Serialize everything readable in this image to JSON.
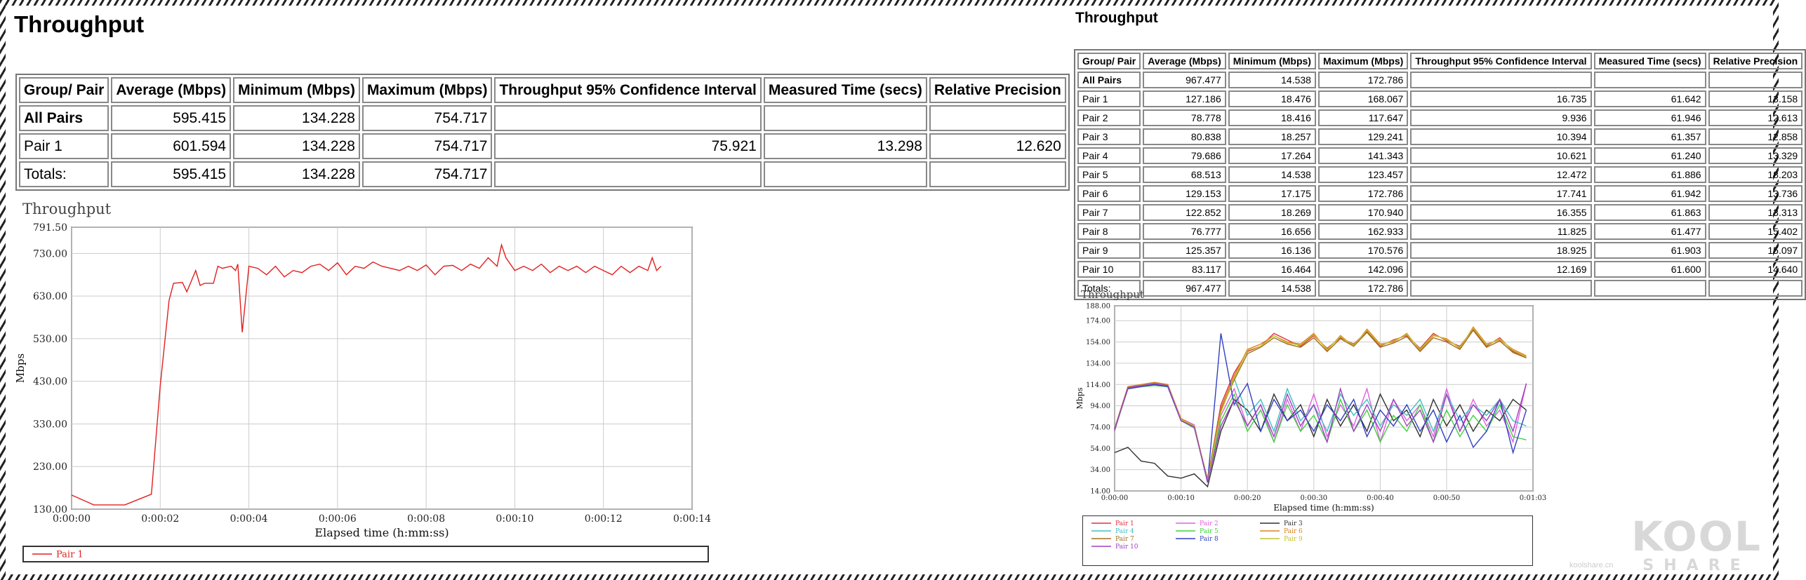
{
  "left": {
    "title": "Throughput",
    "table": {
      "headers": [
        "Group/ Pair",
        "Average (Mbps)",
        "Minimum (Mbps)",
        "Maximum (Mbps)",
        "Throughput 95% Confidence Interval",
        "Measured Time (secs)",
        "Relative Precision"
      ],
      "rows": [
        [
          "All Pairs",
          "595.415",
          "134.228",
          "754.717",
          "",
          "",
          ""
        ],
        [
          "Pair 1",
          "601.594",
          "134.228",
          "754.717",
          "75.921",
          "13.298",
          "12.620"
        ],
        [
          "Totals:",
          "595.415",
          "134.228",
          "754.717",
          "",
          "",
          ""
        ]
      ]
    },
    "chart_title": "Throughput",
    "legend": [
      "Pair 1"
    ]
  },
  "right": {
    "title": "Throughput",
    "table": {
      "headers": [
        "Group/ Pair",
        "Average (Mbps)",
        "Minimum (Mbps)",
        "Maximum (Mbps)",
        "Throughput 95% Confidence Interval",
        "Measured Time (secs)",
        "Relative Precision"
      ],
      "rows": [
        [
          "All Pairs",
          "967.477",
          "14.538",
          "172.786",
          "",
          "",
          ""
        ],
        [
          "Pair 1",
          "127.186",
          "18.476",
          "168.067",
          "16.735",
          "61.642",
          "13.158"
        ],
        [
          "Pair 2",
          "78.778",
          "18.416",
          "117.647",
          "9.936",
          "61.946",
          "12.613"
        ],
        [
          "Pair 3",
          "80.838",
          "18.257",
          "129.241",
          "10.394",
          "61.357",
          "12.858"
        ],
        [
          "Pair 4",
          "79.686",
          "17.264",
          "141.343",
          "10.621",
          "61.240",
          "13.329"
        ],
        [
          "Pair 5",
          "68.513",
          "14.538",
          "123.457",
          "12.472",
          "61.886",
          "18.203"
        ],
        [
          "Pair 6",
          "129.153",
          "17.175",
          "172.786",
          "17.741",
          "61.942",
          "13.736"
        ],
        [
          "Pair 7",
          "122.852",
          "18.269",
          "170.940",
          "16.355",
          "61.863",
          "13.313"
        ],
        [
          "Pair 8",
          "76.777",
          "16.656",
          "162.933",
          "11.825",
          "61.477",
          "15.402"
        ],
        [
          "Pair 9",
          "125.357",
          "16.136",
          "170.576",
          "18.925",
          "61.903",
          "15.097"
        ],
        [
          "Pair 10",
          "83.117",
          "16.464",
          "142.096",
          "12.169",
          "61.600",
          "14.640"
        ],
        [
          "Totals:",
          "967.477",
          "14.538",
          "172.786",
          "",
          "",
          ""
        ]
      ]
    },
    "chart_title": "Throughput",
    "legend": [
      "Pair 1",
      "Pair 2",
      "Pair 3",
      "Pair 4",
      "Pair 5",
      "Pair 6",
      "Pair 7",
      "Pair 8",
      "Pair 9",
      "Pair 10"
    ]
  },
  "watermark": {
    "line1": "KOOL",
    "line2": "SHARE",
    "small": "koolshare.cn"
  },
  "chart_data": [
    {
      "type": "line",
      "title": "Throughput",
      "xlabel": "Elapsed time (h:mm:ss)",
      "ylabel": "Mbps",
      "xlim": [
        0,
        14
      ],
      "ylim": [
        130,
        791.5
      ],
      "x_ticks": [
        "0:00:00",
        "0:00:02",
        "0:00:04",
        "0:00:06",
        "0:00:08",
        "0:00:10",
        "0:00:12",
        "0:00:14"
      ],
      "y_ticks": [
        "130.00",
        "230.00",
        "330.00",
        "430.00",
        "530.00",
        "630.00",
        "730.00",
        "791.50"
      ],
      "grid": true,
      "legend": "bottom",
      "series": [
        {
          "name": "Pair 1",
          "color": "#e02020",
          "x": [
            0,
            0.5,
            1.2,
            1.8,
            2.0,
            2.2,
            2.3,
            2.5,
            2.6,
            2.8,
            2.9,
            3.0,
            3.2,
            3.3,
            3.4,
            3.6,
            3.7,
            3.75,
            3.85,
            4.0,
            4.2,
            4.4,
            4.6,
            4.8,
            5.0,
            5.2,
            5.4,
            5.6,
            5.8,
            6.0,
            6.2,
            6.4,
            6.6,
            6.8,
            7.0,
            7.2,
            7.4,
            7.6,
            7.8,
            8.0,
            8.2,
            8.4,
            8.6,
            8.8,
            9.0,
            9.2,
            9.4,
            9.6,
            9.7,
            9.8,
            10.0,
            10.2,
            10.4,
            10.6,
            10.8,
            11.0,
            11.2,
            11.4,
            11.6,
            11.8,
            12.0,
            12.2,
            12.4,
            12.6,
            12.8,
            13.0,
            13.1,
            13.2,
            13.3
          ],
          "y": [
            163,
            140,
            140,
            165,
            420,
            620,
            660,
            662,
            640,
            690,
            655,
            660,
            660,
            700,
            695,
            700,
            690,
            705,
            545,
            700,
            695,
            680,
            700,
            675,
            690,
            685,
            700,
            705,
            690,
            708,
            680,
            700,
            695,
            710,
            700,
            695,
            690,
            700,
            690,
            703,
            680,
            700,
            702,
            690,
            705,
            695,
            720,
            700,
            750,
            720,
            690,
            700,
            690,
            705,
            685,
            700,
            690,
            700,
            685,
            700,
            690,
            680,
            700,
            685,
            700,
            690,
            720,
            690,
            700
          ]
        }
      ]
    },
    {
      "type": "line",
      "title": "Throughput",
      "xlabel": "Elapsed time (h:mm:ss)",
      "ylabel": "Mbps",
      "xlim": [
        0,
        63
      ],
      "ylim": [
        14,
        188
      ],
      "x_ticks": [
        "0:00:00",
        "0:00:10",
        "0:00:20",
        "0:00:30",
        "0:00:40",
        "0:00:50",
        "0:01:03"
      ],
      "y_ticks": [
        "14.00",
        "34.00",
        "54.00",
        "74.00",
        "94.00",
        "114.00",
        "134.00",
        "154.00",
        "174.00",
        "188.00"
      ],
      "grid": true,
      "legend": "bottom",
      "series": [
        {
          "name": "Pair 1",
          "color": "#e03040",
          "x": [
            0,
            2,
            4,
            6,
            8,
            10,
            12,
            14,
            16,
            18,
            20,
            22,
            24,
            26,
            28,
            30,
            32,
            34,
            36,
            38,
            40,
            42,
            44,
            46,
            48,
            50,
            52,
            54,
            56,
            58,
            60,
            62
          ],
          "y": [
            72,
            110,
            112,
            114,
            112,
            80,
            74,
            25,
            95,
            125,
            145,
            150,
            162,
            156,
            150,
            160,
            148,
            158,
            152,
            164,
            150,
            156,
            160,
            148,
            162,
            155,
            150,
            166,
            150,
            158,
            145,
            140
          ]
        },
        {
          "name": "Pair 2",
          "color": "#e060e0",
          "x": [
            0,
            2,
            4,
            6,
            8,
            10,
            12,
            14,
            16,
            18,
            20,
            22,
            24,
            26,
            28,
            30,
            32,
            34,
            36,
            38,
            40,
            42,
            44,
            46,
            48,
            50,
            52,
            54,
            56,
            58,
            60,
            62
          ],
          "y": [
            70,
            112,
            113,
            115,
            113,
            82,
            76,
            22,
            85,
            110,
            75,
            95,
            60,
            100,
            70,
            105,
            65,
            95,
            75,
            110,
            60,
            100,
            80,
            95,
            65,
            110,
            70,
            100,
            75,
            90,
            60,
            115
          ]
        },
        {
          "name": "Pair 3",
          "color": "#303030",
          "x": [
            0,
            2,
            4,
            6,
            8,
            10,
            12,
            14,
            16,
            18,
            20,
            22,
            24,
            26,
            28,
            30,
            32,
            34,
            36,
            38,
            40,
            42,
            44,
            46,
            48,
            50,
            52,
            54,
            56,
            58,
            60,
            62
          ],
          "y": [
            50,
            55,
            42,
            40,
            28,
            26,
            30,
            18,
            70,
            100,
            90,
            70,
            105,
            80,
            95,
            65,
            100,
            75,
            95,
            70,
            105,
            80,
            90,
            65,
            100,
            75,
            95,
            70,
            90,
            80,
            100,
            90
          ]
        },
        {
          "name": "Pair 4",
          "color": "#40c0c0",
          "x": [
            0,
            2,
            4,
            6,
            8,
            10,
            12,
            14,
            16,
            18,
            20,
            22,
            24,
            26,
            28,
            30,
            32,
            34,
            36,
            38,
            40,
            42,
            44,
            46,
            48,
            50,
            52,
            54,
            56,
            58,
            60,
            62
          ],
          "y": [
            72,
            111,
            114,
            116,
            114,
            81,
            75,
            24,
            90,
            120,
            85,
            100,
            70,
            110,
            80,
            95,
            70,
            105,
            85,
            100,
            75,
            95,
            85,
            100,
            70,
            105,
            80,
            95,
            85,
            100,
            80,
            75
          ]
        },
        {
          "name": "Pair 5",
          "color": "#40d040",
          "x": [
            0,
            2,
            4,
            6,
            8,
            10,
            12,
            14,
            16,
            18,
            20,
            22,
            24,
            26,
            28,
            30,
            32,
            34,
            36,
            38,
            40,
            42,
            44,
            46,
            48,
            50,
            52,
            54,
            56,
            58,
            60,
            62
          ],
          "y": [
            71,
            110,
            112,
            113,
            112,
            80,
            73,
            23,
            80,
            105,
            70,
            90,
            60,
            95,
            70,
            85,
            60,
            100,
            70,
            90,
            60,
            85,
            70,
            95,
            60,
            90,
            65,
            85,
            70,
            95,
            65,
            62
          ]
        },
        {
          "name": "Pair 6",
          "color": "#e08020",
          "x": [
            0,
            2,
            4,
            6,
            8,
            10,
            12,
            14,
            16,
            18,
            20,
            22,
            24,
            26,
            28,
            30,
            32,
            34,
            36,
            38,
            40,
            42,
            44,
            46,
            48,
            50,
            52,
            54,
            56,
            58,
            60,
            62
          ],
          "y": [
            73,
            112,
            114,
            116,
            114,
            82,
            75,
            24,
            92,
            122,
            147,
            152,
            160,
            154,
            152,
            162,
            146,
            160,
            150,
            166,
            152,
            154,
            162,
            146,
            160,
            157,
            148,
            168,
            152,
            156,
            147,
            141
          ]
        },
        {
          "name": "Pair 7",
          "color": "#a07020",
          "x": [
            0,
            2,
            4,
            6,
            8,
            10,
            12,
            14,
            16,
            18,
            20,
            22,
            24,
            26,
            28,
            30,
            32,
            34,
            36,
            38,
            40,
            42,
            44,
            46,
            48,
            50,
            52,
            54,
            56,
            58,
            60,
            62
          ],
          "y": [
            72,
            111,
            113,
            115,
            113,
            81,
            74,
            25,
            90,
            118,
            143,
            149,
            158,
            152,
            149,
            158,
            145,
            157,
            150,
            163,
            149,
            153,
            159,
            145,
            158,
            154,
            147,
            165,
            149,
            155,
            144,
            139
          ]
        },
        {
          "name": "Pair 8",
          "color": "#3040c0",
          "x": [
            0,
            2,
            4,
            6,
            8,
            10,
            12,
            14,
            16,
            18,
            20,
            22,
            24,
            26,
            28,
            30,
            32,
            34,
            36,
            38,
            40,
            42,
            44,
            46,
            48,
            50,
            52,
            54,
            56,
            58,
            60,
            62
          ],
          "y": [
            72,
            110,
            112,
            114,
            112,
            80,
            75,
            22,
            162,
            95,
            115,
            70,
            100,
            80,
            90,
            70,
            95,
            80,
            100,
            65,
            90,
            75,
            95,
            70,
            90,
            60,
            85,
            55,
            70,
            100,
            50,
            90
          ]
        },
        {
          "name": "Pair 9",
          "color": "#c0c030",
          "x": [
            0,
            2,
            4,
            6,
            8,
            10,
            12,
            14,
            16,
            18,
            20,
            22,
            24,
            26,
            28,
            30,
            32,
            34,
            36,
            38,
            40,
            42,
            44,
            46,
            48,
            50,
            52,
            54,
            56,
            58,
            60,
            62
          ],
          "y": [
            72,
            111,
            113,
            115,
            113,
            81,
            75,
            24,
            88,
            120,
            146,
            150,
            160,
            153,
            151,
            161,
            147,
            159,
            151,
            165,
            151,
            155,
            161,
            147,
            161,
            156,
            149,
            167,
            151,
            157,
            146,
            140
          ]
        },
        {
          "name": "Pair 10",
          "color": "#a040c0",
          "x": [
            0,
            2,
            4,
            6,
            8,
            10,
            12,
            14,
            16,
            18,
            20,
            22,
            24,
            26,
            28,
            30,
            32,
            34,
            36,
            38,
            40,
            42,
            44,
            46,
            48,
            50,
            52,
            54,
            56,
            58,
            60,
            62
          ],
          "y": [
            72,
            111,
            113,
            115,
            113,
            80,
            74,
            23,
            75,
            100,
            75,
            95,
            65,
            105,
            75,
            95,
            60,
            110,
            70,
            95,
            70,
            100,
            75,
            90,
            60,
            105,
            70,
            95,
            80,
            100,
            70,
            115
          ]
        }
      ]
    }
  ]
}
